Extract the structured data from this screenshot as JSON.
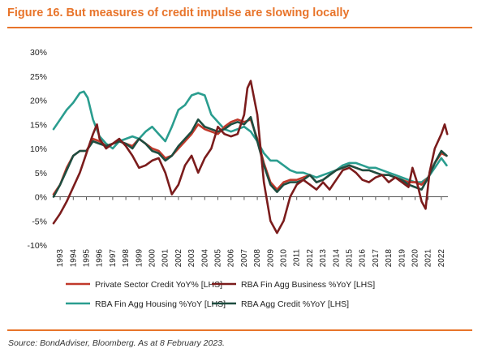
{
  "figure": {
    "title": "Figure 16. But measures of credit impulse are slowing locally",
    "source": "Source: BondAdviser, Bloomberg. As at 8 February 2023."
  },
  "colors": {
    "accent": "#e8742a",
    "private_sector": "#c0392b",
    "fin_agg_business": "#7b1c1c",
    "fin_agg_housing": "#2a9d8f",
    "agg_credit": "#1e4d40"
  },
  "chart_data": {
    "type": "line",
    "title": "",
    "xlabel": "",
    "ylabel": "",
    "ylim": [
      -10,
      30
    ],
    "xlim": [
      1993.0,
      2023.0
    ],
    "y_ticks": [
      "30%",
      "25%",
      "20%",
      "15%",
      "10%",
      "5%",
      "0%",
      "-5%",
      "-10%"
    ],
    "y_tick_values": [
      30,
      25,
      20,
      15,
      10,
      5,
      0,
      -5,
      -10
    ],
    "x_ticks": [
      "1993",
      "1994",
      "1995",
      "1996",
      "1997",
      "1998",
      "1999",
      "2000",
      "2001",
      "2002",
      "2003",
      "2004",
      "2005",
      "2006",
      "2007",
      "2008",
      "2009",
      "2010",
      "2011",
      "2012",
      "2013",
      "2014",
      "2015",
      "2016",
      "2017",
      "2018",
      "2019",
      "2020",
      "2021",
      "2022"
    ],
    "grid": false,
    "legend_position": "bottom",
    "series": [
      {
        "name": "Private Sector Credit YoY% [LHS]",
        "x": [
          1993.0,
          1993.5,
          1994.0,
          1994.5,
          1995.0,
          1995.5,
          1996.0,
          1996.5,
          1997.0,
          1997.5,
          1998.0,
          1998.5,
          1999.0,
          1999.5,
          2000.0,
          2000.5,
          2001.0,
          2001.5,
          2002.0,
          2002.5,
          2003.0,
          2003.5,
          2004.0,
          2004.5,
          2005.0,
          2005.5,
          2006.0,
          2006.5,
          2007.0,
          2007.5,
          2008.0,
          2008.5,
          2009.0,
          2009.5,
          2010.0,
          2010.5,
          2011.0,
          2011.5,
          2012.0,
          2012.5,
          2013.0,
          2013.5,
          2014.0,
          2014.5,
          2015.0,
          2015.5,
          2016.0,
          2016.5,
          2017.0,
          2017.5,
          2018.0,
          2018.5,
          2019.0,
          2019.5,
          2020.0,
          2020.5,
          2021.0,
          2021.5,
          2022.0,
          2022.5,
          2022.9
        ],
        "y": [
          0.5,
          2.5,
          6,
          8.5,
          9.5,
          9.5,
          12,
          11.5,
          10.5,
          11,
          11.5,
          11,
          10.5,
          12,
          11,
          10,
          9.5,
          8,
          8.5,
          10,
          11.5,
          13,
          15,
          14,
          13.5,
          13,
          14.5,
          15.5,
          16,
          15.5,
          16,
          12,
          7,
          3,
          1.5,
          3,
          3.5,
          3.5,
          4,
          4.5,
          3,
          3.5,
          4.5,
          5.5,
          6,
          6.5,
          6,
          5.5,
          5.5,
          5,
          4.5,
          4.5,
          4,
          3.5,
          3,
          3,
          2.5,
          4,
          7,
          9,
          8.5
        ]
      },
      {
        "name": "RBA Fin Agg Business %YoY [LHS]",
        "x": [
          1993.0,
          1993.5,
          1994.0,
          1994.5,
          1995.0,
          1995.5,
          1996.0,
          1996.3,
          1996.5,
          1997.0,
          1997.5,
          1998.0,
          1998.5,
          1999.0,
          1999.5,
          2000.0,
          2000.5,
          2001.0,
          2001.5,
          2002.0,
          2002.5,
          2003.0,
          2003.5,
          2004.0,
          2004.5,
          2005.0,
          2005.5,
          2006.0,
          2006.5,
          2007.0,
          2007.5,
          2007.75,
          2008.0,
          2008.5,
          2009.0,
          2009.5,
          2010.0,
          2010.5,
          2011.0,
          2011.5,
          2012.0,
          2012.5,
          2013.0,
          2013.5,
          2014.0,
          2014.5,
          2015.0,
          2015.5,
          2016.0,
          2016.5,
          2017.0,
          2017.5,
          2018.0,
          2018.5,
          2019.0,
          2019.5,
          2020.0,
          2020.3,
          2020.6,
          2021.0,
          2021.3,
          2021.6,
          2022.0,
          2022.5,
          2022.75,
          2022.95
        ],
        "y": [
          -5.5,
          -3.5,
          -1,
          2,
          5,
          9,
          13,
          15,
          12,
          10,
          11,
          12,
          10.5,
          8.5,
          6,
          6.5,
          7.5,
          8,
          5,
          0.5,
          2.5,
          6.5,
          8.5,
          5,
          8,
          10,
          14.5,
          13,
          12.5,
          13,
          17,
          22.5,
          24,
          17,
          3,
          -5,
          -7.5,
          -5,
          0,
          2.5,
          3.5,
          2.5,
          1.5,
          3,
          1.5,
          3.5,
          5.5,
          6,
          5,
          3.5,
          3,
          4,
          4.5,
          3,
          4,
          3,
          2,
          6,
          3.5,
          -1,
          -2.5,
          5,
          10,
          13,
          15,
          13
        ]
      },
      {
        "name": "RBA Fin Agg Housing %YoY [LHS]",
        "x": [
          1993.0,
          1993.5,
          1994.0,
          1994.5,
          1995.0,
          1995.3,
          1995.6,
          1996.0,
          1996.5,
          1997.0,
          1997.5,
          1998.0,
          1998.5,
          1999.0,
          1999.5,
          2000.0,
          2000.5,
          2001.0,
          2001.5,
          2002.0,
          2002.5,
          2003.0,
          2003.5,
          2004.0,
          2004.5,
          2005.0,
          2005.5,
          2006.0,
          2006.5,
          2007.0,
          2007.5,
          2008.0,
          2008.5,
          2009.0,
          2009.5,
          2010.0,
          2010.5,
          2011.0,
          2011.5,
          2012.0,
          2012.5,
          2013.0,
          2013.5,
          2014.0,
          2014.5,
          2015.0,
          2015.5,
          2016.0,
          2016.5,
          2017.0,
          2017.5,
          2018.0,
          2018.5,
          2019.0,
          2019.5,
          2020.0,
          2020.5,
          2021.0,
          2021.5,
          2022.0,
          2022.5,
          2022.9
        ],
        "y": [
          14,
          16,
          18,
          19.5,
          21.5,
          21.8,
          20.5,
          16,
          12.5,
          11,
          10,
          11.5,
          12,
          12.5,
          12,
          13.5,
          14.5,
          13,
          11.5,
          14.5,
          18,
          19,
          21,
          21.5,
          21,
          17,
          15.5,
          14,
          13.5,
          14,
          14.5,
          13.5,
          11.5,
          9,
          7.5,
          7.5,
          6.5,
          5.5,
          5,
          5,
          4.5,
          4,
          4.5,
          5,
          5.5,
          6.5,
          7,
          7,
          6.5,
          6,
          6,
          5.5,
          5,
          4.5,
          4,
          3.5,
          3,
          3,
          4,
          6,
          8,
          6.5
        ]
      },
      {
        "name": "RBA Agg Credit %YoY [LHS]",
        "x": [
          1993.0,
          1993.5,
          1994.0,
          1994.5,
          1995.0,
          1995.5,
          1996.0,
          1996.5,
          1997.0,
          1997.5,
          1998.0,
          1998.5,
          1999.0,
          1999.5,
          2000.0,
          2000.5,
          2001.0,
          2001.5,
          2002.0,
          2002.5,
          2003.0,
          2003.5,
          2004.0,
          2004.5,
          2005.0,
          2005.5,
          2006.0,
          2006.5,
          2007.0,
          2007.5,
          2008.0,
          2008.5,
          2009.0,
          2009.5,
          2010.0,
          2010.5,
          2011.0,
          2011.5,
          2012.0,
          2012.5,
          2013.0,
          2013.5,
          2014.0,
          2014.5,
          2015.0,
          2015.5,
          2016.0,
          2016.5,
          2017.0,
          2017.5,
          2018.0,
          2018.5,
          2019.0,
          2019.5,
          2020.0,
          2020.5,
          2021.0,
          2021.5,
          2022.0,
          2022.5,
          2022.9
        ],
        "y": [
          0,
          2.5,
          5.5,
          8.5,
          9.5,
          9.5,
          11.5,
          11,
          10.5,
          11,
          11.5,
          11,
          10,
          12,
          11,
          9.5,
          9,
          7.5,
          8.5,
          10.5,
          12,
          13.5,
          16,
          14.5,
          14,
          13.5,
          14,
          15,
          15.5,
          15,
          16.5,
          11.5,
          6.5,
          2.5,
          1,
          2.5,
          3,
          3,
          3.5,
          4.5,
          3,
          3.5,
          4.5,
          5.5,
          6,
          6.5,
          6,
          5.5,
          5.5,
          5,
          4.5,
          4.5,
          4,
          3.5,
          2.5,
          2,
          1.5,
          4,
          7,
          9.5,
          8.5
        ]
      }
    ]
  }
}
